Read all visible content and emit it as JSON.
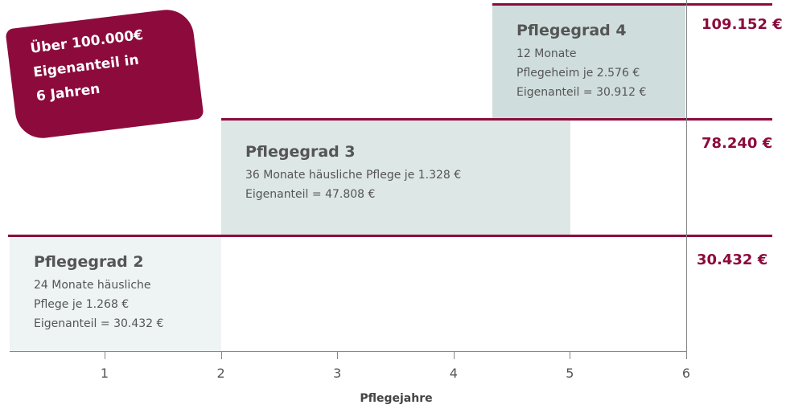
{
  "badge": {
    "lines": [
      "Über 100.000€",
      "Eigenanteil in",
      "6 Jahren"
    ]
  },
  "stages": [
    {
      "title": "Pflegegrad 4",
      "lines": [
        "12 Monate",
        "Pflegeheim je 2.576 €",
        "Eigenanteil = 30.912 €"
      ],
      "total": "109.152 €"
    },
    {
      "title": "Pflegegrad 3",
      "lines": [
        "36 Monate häusliche Pflege je 1.328 €",
        "Eigenanteil = 47.808 €"
      ],
      "total": "78.240 €"
    },
    {
      "title": "Pflegegrad 2",
      "lines": [
        "24 Monate häusliche",
        "Pflege je 1.268 €",
        "Eigenanteil = 30.432 €"
      ],
      "total": "30.432 €"
    }
  ],
  "axis": {
    "ticks": [
      "1",
      "2",
      "3",
      "4",
      "5",
      "6"
    ],
    "label": "Pflegejahre"
  }
}
